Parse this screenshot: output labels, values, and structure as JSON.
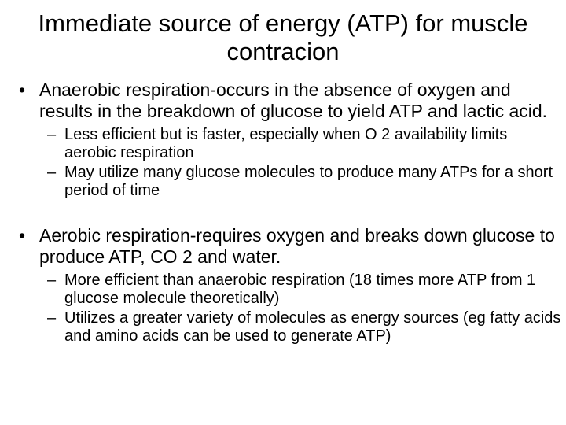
{
  "title": "Immediate source of energy (ATP) for muscle contracion",
  "bullets": [
    {
      "text": "Anaerobic respiration-occurs in the absence of oxygen and results in the breakdown of glucose to yield ATP and lactic acid.",
      "sub": [
        "Less efficient but is faster, especially when O 2 availability limits aerobic respiration",
        "May utilize many glucose molecules to produce many ATPs for a short period of time"
      ]
    },
    {
      "text": "Aerobic respiration-requires oxygen and breaks down glucose to produce ATP, CO 2 and water.",
      "sub": [
        "More efficient than anaerobic respiration (18 times more ATP from 1 glucose molecule theoretically)",
        "Utilizes a greater variety of molecules as energy sources (eg fatty acids and amino acids can be used to generate ATP)"
      ]
    }
  ]
}
